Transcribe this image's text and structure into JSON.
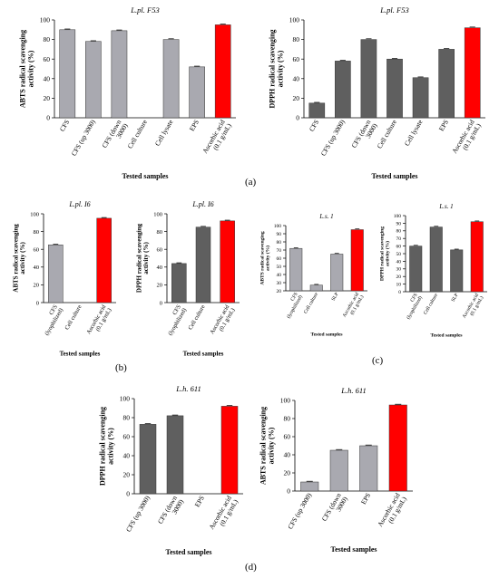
{
  "panel_labels": [
    "(a)",
    "(b)",
    "(c)",
    "(d)"
  ],
  "chart_data": [
    {
      "type": "bar",
      "title": "L.pl. F53",
      "xlabel": "Tested samples",
      "ylabel": "ABTS radical scavenging activity (%)",
      "ylim": [
        0,
        100
      ],
      "yticks": [
        0,
        20,
        40,
        60,
        80,
        100
      ],
      "categories": [
        "CFS",
        "CFS (up 3000)",
        "CFS (down 3000)",
        "Cell culture",
        "Cell lysate",
        "EPS",
        "Ascorbic acid (0.1 g/mL)"
      ],
      "values": [
        90,
        78,
        89,
        0,
        80,
        52,
        95
      ],
      "colors": [
        "#a9a9b0",
        "#a9a9b0",
        "#a9a9b0",
        "#a9a9b0",
        "#a9a9b0",
        "#a9a9b0",
        "#ff0000"
      ]
    },
    {
      "type": "bar",
      "title": "L.pl. F53",
      "xlabel": "Tested samples",
      "ylabel": "DPPH radical scavenging activity (%)",
      "ylim": [
        0,
        100
      ],
      "yticks": [
        0,
        20,
        40,
        60,
        80,
        100
      ],
      "categories": [
        "CFS",
        "CFS (up 3000)",
        "CFS (down 3000)",
        "Cell culture",
        "Cell lysate",
        "EPS",
        "Ascorbic acid (0.1 g/mL)"
      ],
      "values": [
        15,
        58,
        80,
        60,
        41,
        70,
        92
      ],
      "colors": [
        "#5f5f5f",
        "#5f5f5f",
        "#5f5f5f",
        "#5f5f5f",
        "#5f5f5f",
        "#5f5f5f",
        "#ff0000"
      ]
    },
    {
      "type": "bar",
      "title": "L.pl. I6",
      "xlabel": "Tested samples",
      "ylabel": "ABTS radical scavenging activity (%)",
      "ylim": [
        0,
        100
      ],
      "yticks": [
        0,
        20,
        40,
        60,
        80,
        100
      ],
      "categories": [
        "CFS (lyophilized)",
        "Cell culture",
        "Ascorbic acid (0.1 g/mL)"
      ],
      "values": [
        65,
        0,
        95
      ],
      "colors": [
        "#a9a9b0",
        "#a9a9b0",
        "#ff0000"
      ]
    },
    {
      "type": "bar",
      "title": "L.pl. I6",
      "xlabel": "Tested samples",
      "ylabel": "DPPH radical scavenging activity (%)",
      "ylim": [
        0,
        100
      ],
      "yticks": [
        0,
        20,
        40,
        60,
        80,
        100
      ],
      "categories": [
        "CFS (lyophilized)",
        "Cell culture",
        "Ascorbic acid (0.1 g/mL)"
      ],
      "values": [
        44,
        85,
        92
      ],
      "colors": [
        "#5f5f5f",
        "#5f5f5f",
        "#ff0000"
      ]
    },
    {
      "type": "bar",
      "title": "L.s. 1",
      "xlabel": "Tested samples",
      "ylabel": "ABTS radical scavenging activity (%)",
      "ylim": [
        20,
        100
      ],
      "yticks": [
        20,
        30,
        40,
        50,
        60,
        70,
        80,
        90,
        100
      ],
      "categories": [
        "CFS (lyophilized)",
        "Cell culture",
        "SLP",
        "Ascorbic acid (0.1 g/mL)"
      ],
      "values": [
        72,
        27,
        65,
        95
      ],
      "colors": [
        "#a9a9b0",
        "#a9a9b0",
        "#a9a9b0",
        "#ff0000"
      ]
    },
    {
      "type": "bar",
      "title": "L.s. 1",
      "xlabel": "Tested samples",
      "ylabel": "DPPH radical scavenging activity (%)",
      "ylim": [
        0,
        100
      ],
      "yticks": [
        0,
        10,
        20,
        30,
        40,
        50,
        60,
        70,
        80,
        90,
        100
      ],
      "categories": [
        "CFS (lyophilized)",
        "Cell culture",
        "SLP",
        "Ascorbic acid (0.1 g/mL)"
      ],
      "values": [
        60,
        85,
        55,
        92
      ],
      "colors": [
        "#5f5f5f",
        "#5f5f5f",
        "#5f5f5f",
        "#ff0000"
      ]
    },
    {
      "type": "bar",
      "title": "L.h. 611",
      "xlabel": "Tested samples",
      "ylabel": "DPPH radical scavenging activity (%)",
      "ylim": [
        0,
        100
      ],
      "yticks": [
        0,
        20,
        40,
        60,
        80,
        100
      ],
      "categories": [
        "CFS (up 3000)",
        "CFS (down 3000)",
        "EPS",
        "Ascorbic acid (0.1 g/mL)"
      ],
      "values": [
        73,
        82,
        0,
        92
      ],
      "colors": [
        "#5f5f5f",
        "#5f5f5f",
        "#5f5f5f",
        "#ff0000"
      ]
    },
    {
      "type": "bar",
      "title": "L.h. 611",
      "xlabel": "Tested samples",
      "ylabel": "ABTS radical scavenging activity (%)",
      "ylim": [
        0,
        100
      ],
      "yticks": [
        0,
        20,
        40,
        60,
        80,
        100
      ],
      "categories": [
        "CFS (up 3000)",
        "CFS (down 3000)",
        "EPS",
        "Ascorbic acid (0.1 g/mL)"
      ],
      "values": [
        10,
        45,
        50,
        95
      ],
      "colors": [
        "#a9a9b0",
        "#a9a9b0",
        "#a9a9b0",
        "#ff0000"
      ]
    }
  ]
}
